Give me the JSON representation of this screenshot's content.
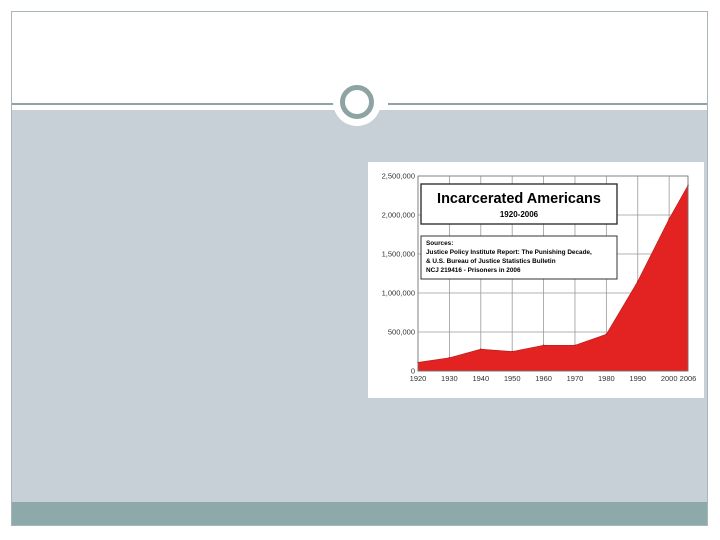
{
  "colors": {
    "accent": "#8ea3a3",
    "content_background": "#c6d0d6",
    "bottom_bar": "#8ea9a9",
    "area_fill": "#e32222"
  },
  "chart_data": {
    "type": "area",
    "title": "Incarcerated Americans",
    "subtitle": "1920-2006",
    "sources": [
      "Sources:",
      "Justice Policy Institute Report: The Punishing Decade,",
      "& U.S. Bureau of Justice Statistics Bulletin",
      "NCJ 219416 - Prisoners in 2006"
    ],
    "x": [
      1920,
      1930,
      1940,
      1950,
      1960,
      1970,
      1980,
      1990,
      2000,
      2006
    ],
    "values": [
      110000,
      170000,
      280000,
      250000,
      330000,
      330000,
      470000,
      1150000,
      1950000,
      2380000
    ],
    "x_ticks": [
      "1920",
      "1930",
      "1940",
      "1950",
      "1960",
      "1970",
      "1980",
      "1990",
      "2000",
      "2006"
    ],
    "y_ticks": [
      {
        "value": 0,
        "label": "0"
      },
      {
        "value": 500000,
        "label": "500,000"
      },
      {
        "value": 1000000,
        "label": "1,000,000"
      },
      {
        "value": 1500000,
        "label": "1,500,000"
      },
      {
        "value": 2000000,
        "label": "2,000,000"
      },
      {
        "value": 2500000,
        "label": "2,500,000"
      }
    ],
    "ylim": [
      0,
      2500000
    ],
    "xlim": [
      1920,
      2006
    ],
    "grid": true,
    "xlabel": "",
    "ylabel": ""
  }
}
